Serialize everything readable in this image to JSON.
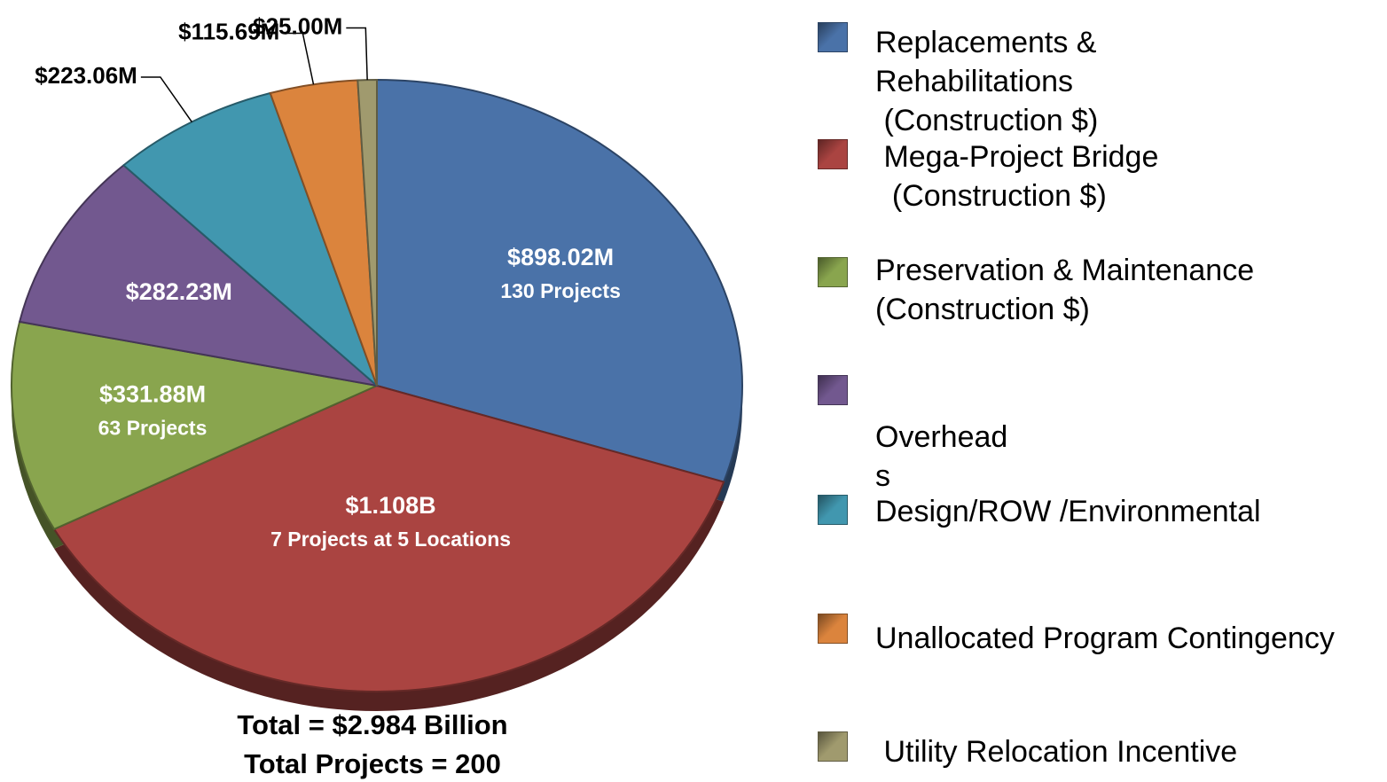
{
  "chart_data": {
    "type": "pie",
    "categories": [
      "Replacements &\nRehabilitations\n (Construction $)",
      " Mega-Project Bridge\n  (Construction $)",
      "Preservation & Maintenance\n(Construction $)",
      "Overhead\ns",
      "Design/ROW /Environmental",
      "Unallocated Program Contingency",
      " Utility Relocation Incentive"
    ],
    "values": [
      898.02,
      1108,
      331.88,
      282.23,
      223.06,
      115.69,
      25.0
    ],
    "value_labels": [
      "$898.02M",
      "$1.108B",
      "$331.88M",
      "$282.23M",
      "$223.06M",
      "$115.69M",
      "$25.00M"
    ],
    "project_labels": [
      "130 Projects",
      "7 Projects at 5 Locations",
      "63 Projects",
      null,
      null,
      null,
      null
    ],
    "colors": [
      "#4a72a8",
      "#aa4441",
      "#89a54e",
      "#72588f",
      "#4197af",
      "#db843d",
      "#a09a6e"
    ],
    "total_labels": [
      "Total = $2.984 Billion",
      "Total Projects = 200"
    ],
    "legend": "right"
  }
}
